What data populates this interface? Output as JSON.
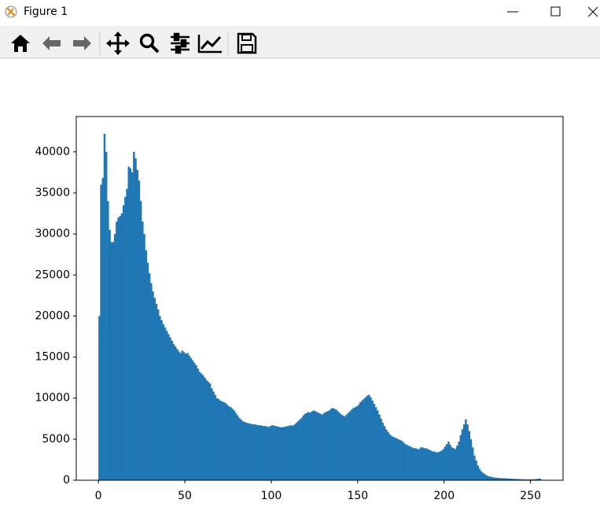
{
  "window": {
    "title": "Figure 1"
  },
  "chart_data": {
    "type": "histogram",
    "color": "#1f77b4",
    "bins": [
      0,
      1,
      2,
      3,
      4,
      5,
      6,
      7,
      8,
      9,
      10,
      11,
      12,
      13,
      14,
      15,
      16,
      17,
      18,
      19,
      20,
      21,
      22,
      23,
      24,
      25,
      26,
      27,
      28,
      29,
      30,
      31,
      32,
      33,
      34,
      35,
      36,
      37,
      38,
      39,
      40,
      41,
      42,
      43,
      44,
      45,
      46,
      47,
      48,
      49,
      50,
      51,
      52,
      53,
      54,
      55,
      56,
      57,
      58,
      59,
      60,
      61,
      62,
      63,
      64,
      65,
      66,
      67,
      68,
      69,
      70,
      71,
      72,
      73,
      74,
      75,
      76,
      77,
      78,
      79,
      80,
      81,
      82,
      83,
      84,
      85,
      86,
      87,
      88,
      89,
      90,
      91,
      92,
      93,
      94,
      95,
      96,
      97,
      98,
      99,
      100,
      101,
      102,
      103,
      104,
      105,
      106,
      107,
      108,
      109,
      110,
      111,
      112,
      113,
      114,
      115,
      116,
      117,
      118,
      119,
      120,
      121,
      122,
      123,
      124,
      125,
      126,
      127,
      128,
      129,
      130,
      131,
      132,
      133,
      134,
      135,
      136,
      137,
      138,
      139,
      140,
      141,
      142,
      143,
      144,
      145,
      146,
      147,
      148,
      149,
      150,
      151,
      152,
      153,
      154,
      155,
      156,
      157,
      158,
      159,
      160,
      161,
      162,
      163,
      164,
      165,
      166,
      167,
      168,
      169,
      170,
      171,
      172,
      173,
      174,
      175,
      176,
      177,
      178,
      179,
      180,
      181,
      182,
      183,
      184,
      185,
      186,
      187,
      188,
      189,
      190,
      191,
      192,
      193,
      194,
      195,
      196,
      197,
      198,
      199,
      200,
      201,
      202,
      203,
      204,
      205,
      206,
      207,
      208,
      209,
      210,
      211,
      212,
      213,
      214,
      215,
      216,
      217,
      218,
      219,
      220,
      221,
      222,
      223,
      224,
      225,
      226,
      227,
      228,
      229,
      230,
      231,
      232,
      233,
      234,
      235,
      236,
      237,
      238,
      239,
      240,
      241,
      242,
      243,
      244,
      245,
      246,
      247,
      248,
      249,
      250,
      251,
      252,
      253,
      254,
      255,
      256
    ],
    "values": [
      20000,
      36000,
      36800,
      42200,
      40000,
      34000,
      30500,
      29000,
      29000,
      30000,
      31500,
      32000,
      32200,
      32500,
      33500,
      34500,
      35500,
      38200,
      38000,
      37500,
      40000,
      39200,
      37800,
      36500,
      34000,
      31500,
      30000,
      28000,
      26500,
      25200,
      24000,
      23000,
      22200,
      21500,
      20800,
      20000,
      19500,
      19000,
      18600,
      18200,
      17800,
      17400,
      17000,
      16600,
      16300,
      16000,
      15700,
      15500,
      15800,
      15600,
      15400,
      15500,
      15200,
      14900,
      14600,
      14300,
      14000,
      13600,
      13200,
      13000,
      12800,
      12500,
      12200,
      12000,
      11800,
      11200,
      10800,
      10400,
      10000,
      9900,
      9700,
      9600,
      9500,
      9400,
      9200,
      9000,
      8900,
      8700,
      8500,
      8200,
      7900,
      7600,
      7400,
      7200,
      7100,
      7000,
      6950,
      6900,
      6850,
      6800,
      6800,
      6750,
      6700,
      6700,
      6650,
      6600,
      6600,
      6550,
      6500,
      6600,
      6700,
      6650,
      6600,
      6550,
      6500,
      6450,
      6450,
      6500,
      6550,
      6600,
      6650,
      6700,
      6650,
      6800,
      7000,
      7200,
      7400,
      7600,
      7900,
      8100,
      8200,
      8300,
      8250,
      8400,
      8500,
      8400,
      8300,
      8200,
      8100,
      8000,
      8200,
      8300,
      8400,
      8500,
      8700,
      8800,
      8700,
      8600,
      8400,
      8200,
      8000,
      7900,
      7800,
      8000,
      8200,
      8400,
      8600,
      8800,
      8900,
      9000,
      9200,
      9500,
      9700,
      9900,
      10100,
      10300,
      10400,
      10100,
      9700,
      9300,
      8900,
      8500,
      8000,
      7500,
      7000,
      6600,
      6200,
      5900,
      5600,
      5400,
      5300,
      5200,
      5100,
      5000,
      4900,
      4800,
      4600,
      4400,
      4300,
      4200,
      4100,
      4000,
      3900,
      3900,
      3800,
      3800,
      4000,
      4000,
      3900,
      3900,
      3800,
      3700,
      3600,
      3500,
      3500,
      3400,
      3400,
      3500,
      3600,
      3800,
      4100,
      4400,
      4700,
      4300,
      4000,
      3900,
      3800,
      4200,
      4700,
      5500,
      6200,
      6800,
      7400,
      6800,
      6000,
      5000,
      4000,
      3000,
      2400,
      1800,
      1400,
      1100,
      900,
      750,
      600,
      500,
      450,
      400,
      350,
      320,
      300,
      280,
      260,
      250,
      240,
      230,
      220,
      200,
      190,
      180,
      170,
      160,
      150,
      140,
      130,
      120,
      110,
      100,
      100,
      100,
      110,
      120,
      130,
      150,
      180,
      200
    ],
    "xlim": [
      -12.8,
      268.8
    ],
    "xticks": [
      0,
      50,
      100,
      150,
      200,
      250
    ],
    "ylim": [
      0,
      44300
    ],
    "yticks": [
      0,
      5000,
      10000,
      15000,
      20000,
      25000,
      30000,
      35000,
      40000
    ]
  }
}
